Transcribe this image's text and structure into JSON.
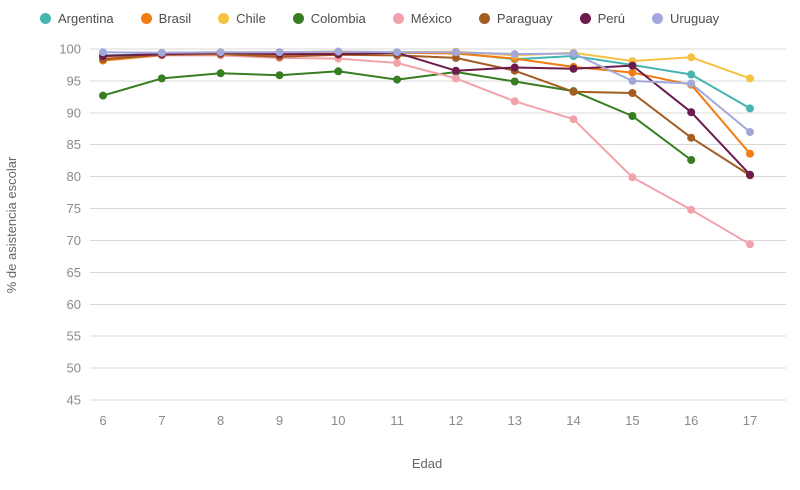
{
  "chart_data": {
    "type": "line",
    "xlabel": "Edad",
    "ylabel": "% de asistencia escolar",
    "x": [
      6,
      7,
      8,
      9,
      10,
      11,
      12,
      13,
      14,
      15,
      16,
      17
    ],
    "ylim": [
      45,
      100
    ],
    "ytick_step": 5,
    "grid": true,
    "legend_position": "top",
    "series": [
      {
        "name": "Argentina",
        "color": "#45b5b0",
        "values": [
          99.0,
          99.2,
          99.4,
          99.3,
          99.5,
          99.4,
          99.4,
          98.4,
          98.9,
          97.5,
          96.0,
          90.7
        ]
      },
      {
        "name": "Brasil",
        "color": "#f07c12",
        "values": [
          98.2,
          99.0,
          99.3,
          99.1,
          99.4,
          99.4,
          99.3,
          98.5,
          97.2,
          96.3,
          94.4,
          83.6
        ]
      },
      {
        "name": "Chile",
        "color": "#f6c244",
        "values": [
          98.6,
          99.4,
          99.5,
          99.5,
          99.6,
          99.5,
          99.6,
          99.0,
          99.4,
          98.1,
          98.7,
          95.4
        ]
      },
      {
        "name": "Colombia",
        "color": "#377d22",
        "values": [
          92.7,
          95.4,
          96.2,
          95.9,
          96.5,
          95.2,
          96.4,
          94.9,
          93.4,
          89.5,
          82.6,
          null
        ]
      },
      {
        "name": "México",
        "color": "#f2a2aa",
        "values": [
          98.5,
          99.0,
          99.0,
          98.6,
          98.5,
          97.8,
          95.4,
          91.8,
          89.0,
          79.9,
          74.8,
          69.4
        ]
      },
      {
        "name": "Paraguay",
        "color": "#a35d21",
        "values": [
          98.4,
          99.1,
          99.2,
          98.8,
          99.1,
          99.0,
          98.6,
          96.6,
          93.3,
          93.1,
          86.1,
          80.2
        ]
      },
      {
        "name": "Perú",
        "color": "#6d1a4d",
        "values": [
          98.9,
          99.2,
          99.4,
          99.2,
          99.2,
          99.4,
          96.6,
          97.1,
          96.9,
          97.4,
          90.1,
          80.3
        ]
      },
      {
        "name": "Uruguay",
        "color": "#a3a8db",
        "values": [
          99.5,
          99.4,
          99.5,
          99.5,
          99.6,
          99.5,
          99.5,
          99.2,
          99.3,
          95.0,
          94.6,
          87.0
        ]
      }
    ]
  }
}
